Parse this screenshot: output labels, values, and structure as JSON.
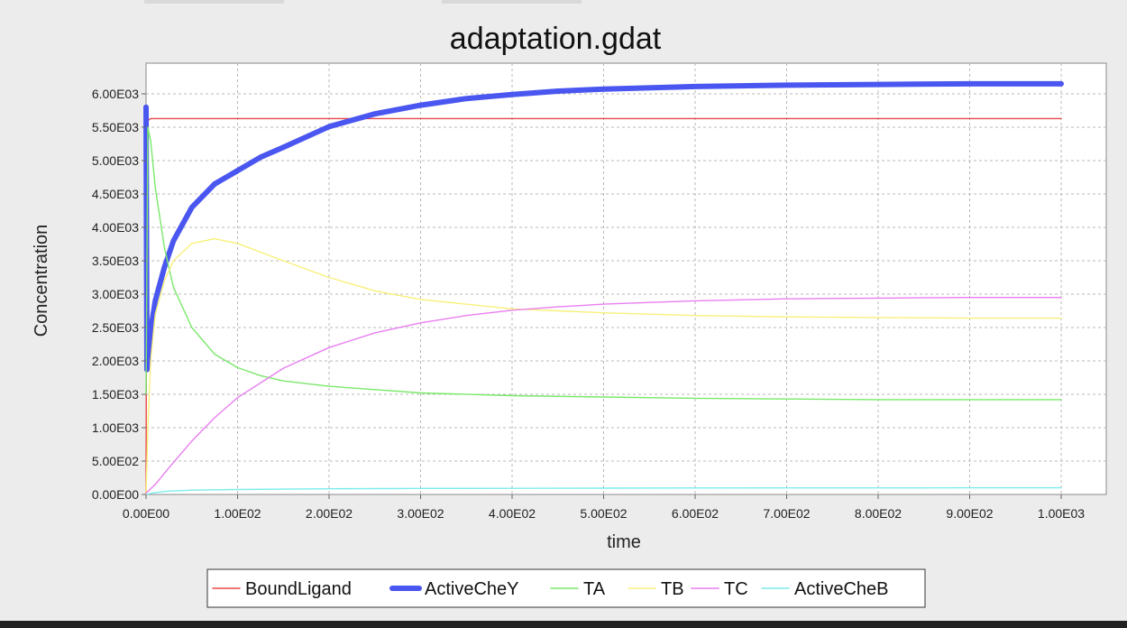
{
  "chart_data": {
    "type": "line",
    "title": "adaptation.gdat",
    "xlabel": "time",
    "ylabel": "Concentration",
    "xlim": [
      0,
      1000
    ],
    "ylim": [
      0,
      6300
    ],
    "x_ticks": [
      0,
      100,
      200,
      300,
      400,
      500,
      600,
      700,
      800,
      900,
      1000
    ],
    "x_tick_labels": [
      "0.00E00",
      "1.00E02",
      "2.00E02",
      "3.00E02",
      "4.00E02",
      "5.00E02",
      "6.00E02",
      "7.00E02",
      "8.00E02",
      "9.00E02",
      "1.00E03"
    ],
    "y_ticks": [
      0,
      500,
      1000,
      1500,
      2000,
      2500,
      3000,
      3500,
      4000,
      4500,
      5000,
      5500,
      6000
    ],
    "y_tick_labels": [
      "0.00E00",
      "5.00E02",
      "1.00E03",
      "1.50E03",
      "2.00E03",
      "2.50E03",
      "3.00E03",
      "3.50E03",
      "4.00E03",
      "4.50E03",
      "5.00E03",
      "5.50E03",
      "6.00E03"
    ],
    "grid": true,
    "legend_position": "bottom",
    "series": [
      {
        "name": "BoundLigand",
        "color": "#e8484a",
        "width": "normal",
        "x": [
          0,
          0.5,
          1,
          2,
          5,
          10,
          50,
          100,
          200,
          300,
          400,
          500,
          600,
          700,
          800,
          900,
          1000
        ],
        "y": [
          0,
          3000,
          5000,
          5600,
          5630,
          5630,
          5630,
          5630,
          5630,
          5630,
          5630,
          5630,
          5630,
          5630,
          5630,
          5630,
          5630
        ]
      },
      {
        "name": "ActiveCheY",
        "color": "#4a56f0",
        "width": "thick",
        "x": [
          0,
          1,
          2,
          5,
          10,
          20,
          30,
          50,
          75,
          100,
          125,
          150,
          200,
          250,
          300,
          350,
          400,
          450,
          500,
          600,
          700,
          800,
          900,
          1000
        ],
        "y": [
          5800,
          1870,
          2000,
          2450,
          2900,
          3400,
          3800,
          4300,
          4650,
          4850,
          5050,
          5200,
          5510,
          5700,
          5830,
          5930,
          5990,
          6040,
          6070,
          6110,
          6130,
          6140,
          6150,
          6150
        ]
      },
      {
        "name": "TA",
        "color": "#7ae86a",
        "width": "normal",
        "x": [
          0,
          2,
          5,
          10,
          20,
          30,
          50,
          75,
          100,
          125,
          150,
          200,
          250,
          300,
          400,
          500,
          600,
          700,
          800,
          900,
          1000
        ],
        "y": [
          1500,
          5500,
          5300,
          4600,
          3700,
          3100,
          2500,
          2100,
          1900,
          1780,
          1700,
          1620,
          1570,
          1520,
          1480,
          1460,
          1440,
          1430,
          1420,
          1420,
          1420
        ]
      },
      {
        "name": "TB",
        "color": "#f8f07a",
        "width": "normal",
        "x": [
          0,
          2,
          5,
          10,
          20,
          30,
          50,
          75,
          100,
          150,
          200,
          250,
          300,
          400,
          500,
          600,
          700,
          800,
          900,
          1000
        ],
        "y": [
          0,
          1000,
          2000,
          2700,
          3200,
          3500,
          3760,
          3830,
          3760,
          3500,
          3250,
          3050,
          2920,
          2780,
          2720,
          2680,
          2660,
          2650,
          2640,
          2640
        ]
      },
      {
        "name": "TC",
        "color": "#e87ef0",
        "width": "normal",
        "x": [
          0,
          10,
          25,
          50,
          75,
          100,
          150,
          200,
          250,
          300,
          350,
          400,
          450,
          500,
          600,
          700,
          800,
          900,
          1000
        ],
        "y": [
          20,
          150,
          400,
          800,
          1150,
          1450,
          1890,
          2200,
          2420,
          2570,
          2680,
          2760,
          2810,
          2850,
          2900,
          2930,
          2940,
          2950,
          2950
        ]
      },
      {
        "name": "ActiveCheB",
        "color": "#7eecec",
        "width": "normal",
        "x": [
          0,
          10,
          25,
          50,
          100,
          200,
          300,
          400,
          500,
          600,
          700,
          800,
          900,
          1000
        ],
        "y": [
          0,
          30,
          50,
          65,
          75,
          85,
          90,
          92,
          95,
          97,
          98,
          99,
          100,
          100
        ]
      }
    ]
  }
}
